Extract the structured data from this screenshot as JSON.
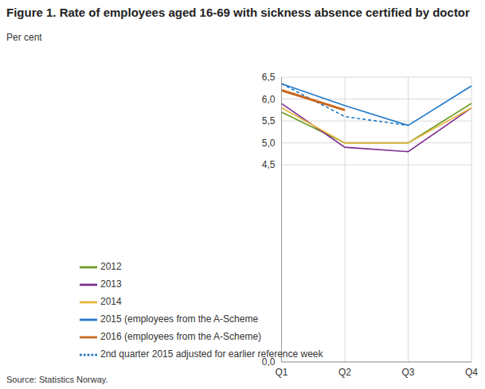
{
  "chart_data": {
    "type": "line",
    "title": "Figure 1. Rate of employees aged 16-69 with sickness absence certified by doctor",
    "y_label": "Per cent",
    "source": "Source: Statistics Norway.",
    "categories": [
      "Q1",
      "Q2",
      "Q3",
      "Q4"
    ],
    "series": [
      {
        "name": "2012",
        "color": "#6b9b24",
        "values": [
          5.7,
          5.0,
          5.0,
          5.9
        ]
      },
      {
        "name": "2013",
        "color": "#7b2d8e",
        "values": [
          5.9,
          4.9,
          4.8,
          5.8
        ]
      },
      {
        "name": "2014",
        "color": "#e8b53c",
        "values": [
          5.8,
          5.0,
          5.0,
          5.8
        ]
      },
      {
        "name": "2015 (employees from the A-Scheme",
        "color": "#1f78c8",
        "values": [
          6.35,
          5.85,
          5.4,
          6.3
        ]
      },
      {
        "name": "2nd quarter 2015 adjusted for earlier reference week",
        "color": "#1f78c8",
        "line_style": "dashed",
        "values": [
          6.35,
          5.6,
          5.4,
          null
        ]
      },
      {
        "name": "2016 (employees from the A-Scheme)",
        "color": "#c8661c",
        "values": [
          6.2,
          5.75,
          null,
          null
        ]
      }
    ],
    "ylim": [
      0,
      6.5
    ],
    "yticks": [
      {
        "value": 0,
        "label": "0,0"
      },
      {
        "value": 4.5,
        "label": "4,5"
      },
      {
        "value": 5,
        "label": "5,0"
      },
      {
        "value": 5.5,
        "label": "5,5"
      },
      {
        "value": 6,
        "label": "6,0"
      },
      {
        "value": 6.5,
        "label": "6,5"
      }
    ],
    "grid": true,
    "legend": "lower left"
  }
}
